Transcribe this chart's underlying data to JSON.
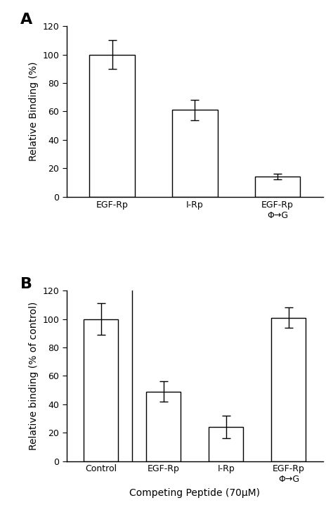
{
  "panel_A": {
    "categories": [
      "EGF-Rp",
      "I-Rp",
      "EGF-Rp\nΦ→G"
    ],
    "values": [
      100,
      61,
      14
    ],
    "errors": [
      10,
      7,
      2
    ],
    "ylabel": "Relative Binding (%)",
    "ylim": [
      0,
      120
    ],
    "yticks": [
      0,
      20,
      40,
      60,
      80,
      100,
      120
    ],
    "label": "A"
  },
  "panel_B": {
    "categories": [
      "Control",
      "EGF-Rp",
      "I-Rp",
      "EGF-Rp\nΦ→G"
    ],
    "values": [
      100,
      49,
      24,
      101
    ],
    "errors": [
      11,
      7,
      8,
      7
    ],
    "ylabel": "Relative binding (% of control)",
    "xlabel": "Competing Peptide (70μM)",
    "ylim": [
      0,
      120
    ],
    "yticks": [
      0,
      20,
      40,
      60,
      80,
      100,
      120
    ],
    "label": "B"
  },
  "bar_color": "white",
  "bar_edgecolor": "black",
  "bar_width": 0.55,
  "font_size": 10,
  "label_fontsize": 16,
  "tick_fontsize": 9,
  "figsize": [
    4.74,
    7.45
  ],
  "dpi": 100
}
